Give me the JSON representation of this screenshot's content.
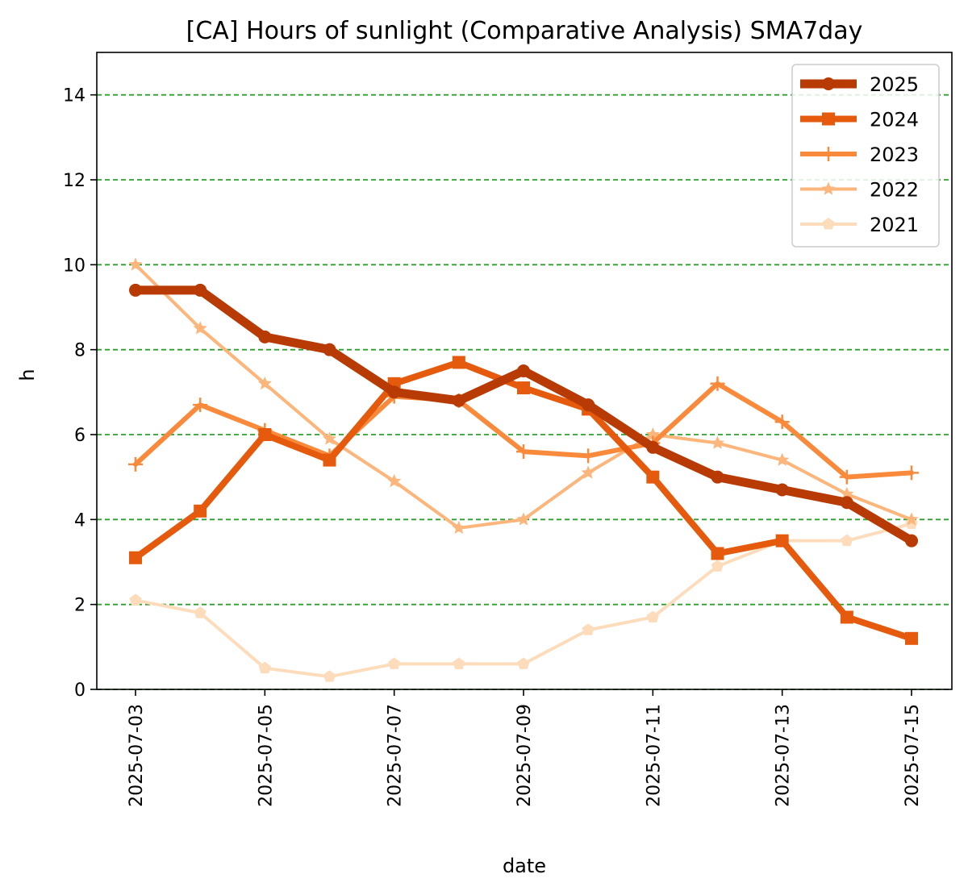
{
  "chart_data": {
    "type": "line",
    "title": "[CA] Hours of sunlight (Comparative Analysis) SMA7day",
    "xlabel": "date",
    "ylabel": "h",
    "ylim": [
      0,
      15
    ],
    "yticks": [
      0,
      2,
      4,
      6,
      8,
      10,
      12,
      14
    ],
    "x": [
      "2025-07-03",
      "2025-07-04",
      "2025-07-05",
      "2025-07-06",
      "2025-07-07",
      "2025-07-08",
      "2025-07-09",
      "2025-07-10",
      "2025-07-11",
      "2025-07-12",
      "2025-07-13",
      "2025-07-14",
      "2025-07-15"
    ],
    "xticks": [
      "2025-07-03",
      "2025-07-05",
      "2025-07-07",
      "2025-07-09",
      "2025-07-11",
      "2025-07-13",
      "2025-07-15"
    ],
    "grid": {
      "axis": "y",
      "style": "dashed",
      "color": "#2ca02c"
    },
    "legend_position": "top-right",
    "series": [
      {
        "name": "2025",
        "color": "#b83a04",
        "marker": "circle",
        "values": [
          9.4,
          9.4,
          8.3,
          8.0,
          7.0,
          6.8,
          7.5,
          6.7,
          5.7,
          5.0,
          4.7,
          4.4,
          3.5
        ]
      },
      {
        "name": "2024",
        "color": "#e55a0c",
        "marker": "square",
        "values": [
          3.1,
          4.2,
          6.0,
          5.4,
          7.2,
          7.7,
          7.1,
          6.6,
          5.0,
          3.2,
          3.5,
          1.7,
          1.2
        ]
      },
      {
        "name": "2023",
        "color": "#f98a3c",
        "marker": "plus",
        "values": [
          5.3,
          6.7,
          6.1,
          5.5,
          6.9,
          6.8,
          5.6,
          5.5,
          5.8,
          7.2,
          6.3,
          5.0,
          5.1
        ]
      },
      {
        "name": "2022",
        "color": "#fcb57a",
        "marker": "star",
        "values": [
          10.0,
          8.5,
          7.2,
          5.9,
          4.9,
          3.8,
          4.0,
          5.1,
          6.0,
          5.8,
          5.4,
          4.6,
          4.0
        ]
      },
      {
        "name": "2021",
        "color": "#fddcbc",
        "marker": "pentagon",
        "values": [
          2.1,
          1.8,
          0.5,
          0.3,
          0.6,
          0.6,
          0.6,
          1.4,
          1.7,
          2.9,
          3.5,
          3.5,
          3.9
        ]
      }
    ]
  }
}
